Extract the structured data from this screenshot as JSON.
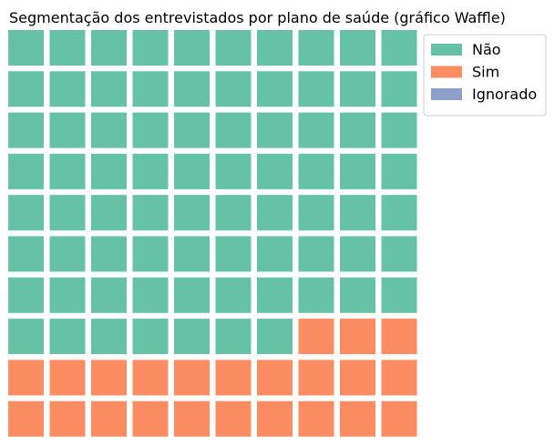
{
  "chart_data": {
    "type": "waffle",
    "title": "Segmentação dos entrevistados por plano de saúde (gráfico Waffle)",
    "rows": 10,
    "columns": 10,
    "fill_order": "row-major from top-left",
    "series": [
      {
        "name": "Não",
        "value": 77,
        "color": "#66c2a5"
      },
      {
        "name": "Sim",
        "value": 23,
        "color": "#fc8d62"
      },
      {
        "name": "Ignorado",
        "value": 0,
        "color": "#8da0cb"
      }
    ],
    "legend_position": "top-right"
  }
}
